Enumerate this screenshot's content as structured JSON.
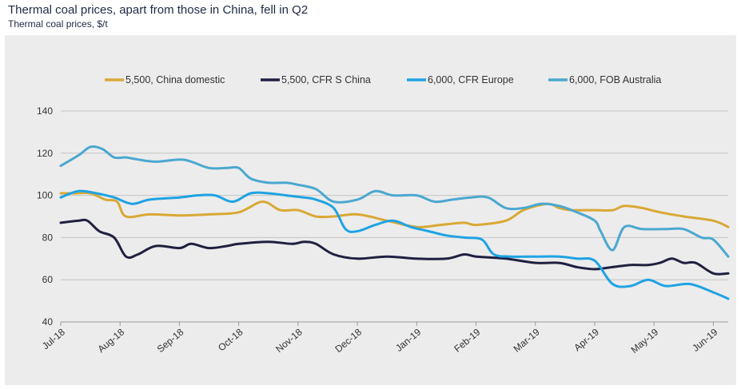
{
  "chart_data": {
    "type": "line",
    "title": "Thermal coal prices, apart from those in China, fell in Q2",
    "subtitle": "Thermal coal prices, $/t",
    "xlabel": "",
    "ylabel": "",
    "ylim": [
      40,
      140
    ],
    "yticks": [
      40,
      60,
      80,
      100,
      120,
      140
    ],
    "grid": true,
    "legend": "top",
    "xlim": [
      0,
      11.25
    ],
    "xticks": [
      "Jul-18",
      "Aug-18",
      "Sep-18",
      "Oct-18",
      "Nov-18",
      "Dec-18",
      "Jan-19",
      "Feb-19",
      "Mar-19",
      "Apr-19",
      "May-19",
      "Jun-19"
    ],
    "series": [
      {
        "name": "5,500, China domestic",
        "color": "#d9a836",
        "x": [
          0,
          0.25,
          0.5,
          0.75,
          0.95,
          1.1,
          1.5,
          2,
          2.5,
          3,
          3.4,
          3.7,
          4,
          4.3,
          4.6,
          5,
          5.5,
          6,
          6.4,
          6.8,
          7,
          7.5,
          7.8,
          8.2,
          8.4,
          8.6,
          9,
          9.3,
          9.5,
          9.8,
          10.1,
          10.5,
          11,
          11.25
        ],
        "values": [
          101,
          101,
          101,
          98,
          97,
          90,
          91,
          90.5,
          91,
          92,
          97,
          93,
          93,
          90,
          90,
          91,
          88,
          85,
          86,
          87,
          86,
          88,
          93,
          96,
          94,
          93,
          93,
          93,
          95,
          94,
          92,
          90,
          88,
          85
        ]
      },
      {
        "name": "5,500, CFR S China",
        "color": "#1f2040",
        "x": [
          0,
          0.3,
          0.45,
          0.65,
          0.9,
          1.1,
          1.3,
          1.6,
          2,
          2.2,
          2.5,
          2.8,
          3,
          3.5,
          3.9,
          4.1,
          4.3,
          4.6,
          5,
          5.5,
          6,
          6.5,
          6.8,
          7,
          7.5,
          8,
          8.4,
          8.7,
          9,
          9.3,
          9.6,
          9.9,
          10.1,
          10.3,
          10.5,
          10.7,
          11,
          11.25
        ],
        "values": [
          87,
          88,
          88,
          83,
          80,
          71,
          72,
          76,
          75,
          77,
          75,
          76,
          77,
          78,
          77,
          78,
          77,
          72,
          70,
          71,
          70,
          70,
          72,
          71,
          70,
          68,
          68,
          66,
          65,
          66,
          67,
          67,
          68,
          70,
          68,
          68,
          63,
          63
        ]
      },
      {
        "name": "6,000, CFR Europe",
        "color": "#1ea3e3",
        "x": [
          0,
          0.3,
          0.6,
          0.9,
          1.2,
          1.5,
          2,
          2.3,
          2.6,
          2.9,
          3.2,
          3.5,
          3.8,
          4.1,
          4.3,
          4.6,
          4.8,
          5,
          5.3,
          5.6,
          5.9,
          6.2,
          6.5,
          6.8,
          7.1,
          7.3,
          7.6,
          8,
          8.4,
          8.7,
          9,
          9.3,
          9.6,
          9.9,
          10.2,
          10.6,
          11,
          11.25
        ],
        "values": [
          99,
          102,
          101,
          99,
          96,
          98,
          99,
          100,
          100,
          97,
          101,
          101,
          100,
          99,
          98,
          94,
          84,
          83,
          86,
          88,
          85,
          83,
          81,
          80,
          79,
          72,
          71,
          71,
          71,
          70,
          69,
          58,
          57,
          60,
          57,
          58,
          54,
          51
        ]
      },
      {
        "name": "6,000, FOB Australia",
        "color": "#4aa8cf",
        "x": [
          0,
          0.3,
          0.5,
          0.7,
          0.9,
          1.1,
          1.3,
          1.6,
          2,
          2.2,
          2.5,
          2.8,
          3,
          3.2,
          3.5,
          3.8,
          4,
          4.3,
          4.6,
          5,
          5.3,
          5.6,
          6,
          6.3,
          6.6,
          6.9,
          7.2,
          7.5,
          7.8,
          8.1,
          8.4,
          8.7,
          9,
          9.1,
          9.3,
          9.5,
          9.8,
          10.2,
          10.5,
          10.8,
          11,
          11.25
        ],
        "values": [
          114,
          119,
          123,
          122,
          118,
          118,
          117,
          116,
          117,
          116,
          113,
          113,
          113,
          108,
          106,
          106,
          105,
          103,
          97,
          98,
          102,
          100,
          100,
          97,
          98,
          99,
          99,
          94,
          94,
          96,
          95,
          92,
          88,
          83,
          74,
          85,
          84,
          84,
          84,
          80,
          79,
          71
        ]
      }
    ]
  }
}
